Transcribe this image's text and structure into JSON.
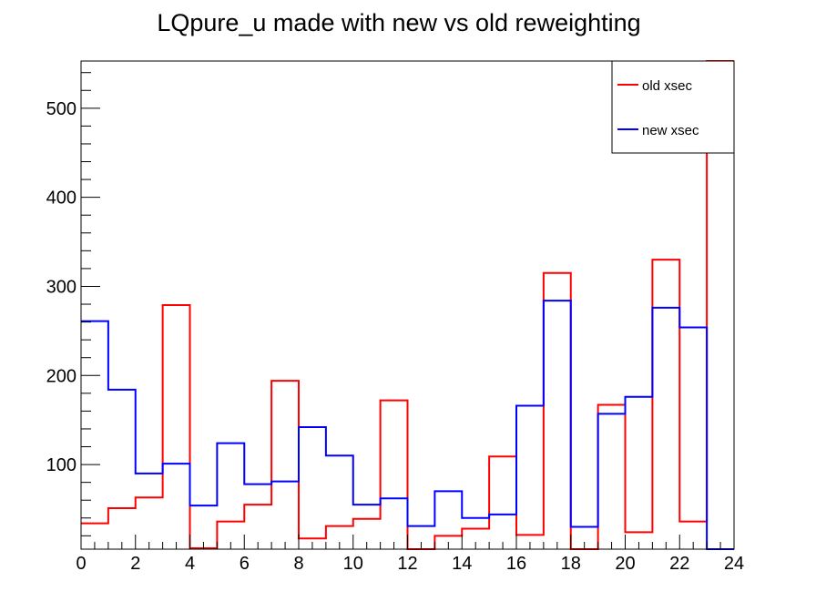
{
  "chart_data": {
    "type": "histogram",
    "title": "LQpure_u made with new vs old reweighting",
    "xlabel": "",
    "ylabel": "",
    "xlim": [
      0,
      24
    ],
    "ylim": [
      5,
      553
    ],
    "bin_edges": [
      0,
      1,
      2,
      3,
      4,
      5,
      6,
      7,
      8,
      9,
      10,
      11,
      12,
      13,
      14,
      15,
      16,
      17,
      18,
      19,
      20,
      21,
      22,
      23,
      24
    ],
    "x_ticks": [
      "0",
      "2",
      "4",
      "6",
      "8",
      "10",
      "12",
      "14",
      "16",
      "18",
      "20",
      "22",
      "24"
    ],
    "y_ticks": [
      "100",
      "200",
      "300",
      "400",
      "500"
    ],
    "grid": false,
    "legend_position": "top-right",
    "series": [
      {
        "name": "old xsec",
        "color": "#ff0000",
        "values": [
          34,
          51,
          63,
          279,
          6,
          36,
          55,
          194,
          17,
          31,
          39,
          172,
          5,
          20,
          28,
          109,
          21,
          315,
          5,
          167,
          24,
          330,
          36,
          553
        ]
      },
      {
        "name": "new xsec",
        "color": "#0000ff",
        "values": [
          261,
          184,
          90,
          101,
          54,
          124,
          78,
          81,
          142,
          110,
          55,
          62,
          31,
          70,
          40,
          44,
          166,
          284,
          30,
          157,
          176,
          276,
          254,
          0
        ]
      }
    ]
  }
}
